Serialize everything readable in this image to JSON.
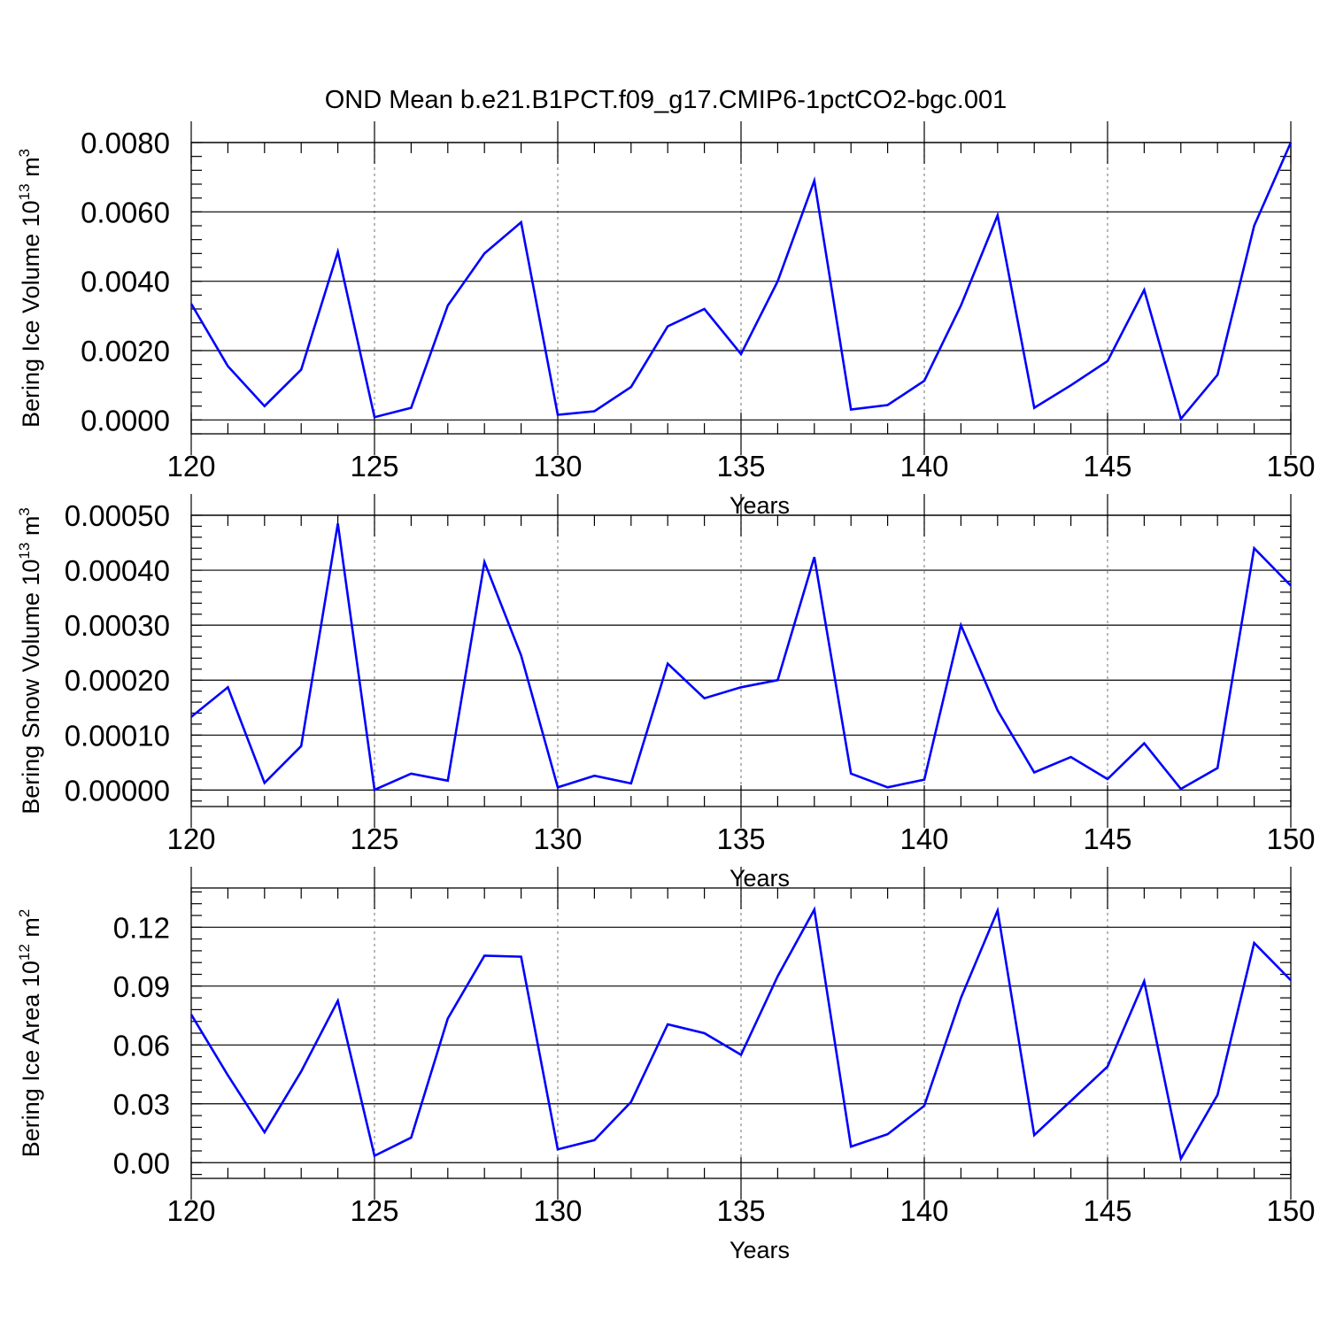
{
  "title": "OND Mean b.e21.B1PCT.f09_g17.CMIP6-1pctCO2-bgc.001",
  "colors": {
    "series": "#0000ff",
    "grid": "#888888",
    "axis": "#000000"
  },
  "chart_data": [
    {
      "type": "line",
      "xlabel": "Years",
      "ylabel": {
        "prefix": "Bering Ice Volume 10",
        "sup": "13",
        "mid": " m",
        "sup2": "3"
      },
      "xlim": [
        120,
        150
      ],
      "ylim": [
        -0.0004,
        0.008
      ],
      "xticks": [
        120,
        125,
        130,
        135,
        140,
        145,
        150
      ],
      "xtick_labels": [
        "120",
        "125",
        "130",
        "135",
        "140",
        "145",
        "150"
      ],
      "yticks": [
        0,
        0.002,
        0.004,
        0.006,
        0.008
      ],
      "ytick_labels": [
        "0.0000",
        "0.0020",
        "0.0040",
        "0.0060",
        "0.0080"
      ],
      "grid": "vertical dashed at major x ticks",
      "series": [
        {
          "x": [
            120,
            121,
            122,
            123,
            124,
            125,
            126,
            127,
            128,
            129,
            130,
            131,
            132,
            133,
            134,
            135,
            136,
            137,
            138,
            139,
            140,
            141,
            142,
            143,
            144,
            145,
            146,
            147,
            148,
            149,
            150
          ],
          "values": [
            0.00335,
            0.00155,
            0.0004,
            0.00145,
            0.00485,
            8e-05,
            0.00035,
            0.0033,
            0.0048,
            0.0057,
            0.00015,
            0.00025,
            0.00095,
            0.0027,
            0.0032,
            0.0019,
            0.004,
            0.0069,
            0.0003,
            0.00043,
            0.00113,
            0.0033,
            0.0059,
            0.00035,
            0.001,
            0.0017,
            0.00375,
            3e-05,
            0.0013,
            0.0056,
            0.008
          ]
        }
      ]
    },
    {
      "type": "line",
      "xlabel": "Years",
      "ylabel": {
        "prefix": "Bering Snow Volume 10",
        "sup": "13",
        "mid": " m",
        "sup2": "3"
      },
      "xlim": [
        120,
        150
      ],
      "ylim": [
        -3e-05,
        0.0005
      ],
      "xticks": [
        120,
        125,
        130,
        135,
        140,
        145,
        150
      ],
      "xtick_labels": [
        "120",
        "125",
        "130",
        "135",
        "140",
        "145",
        "150"
      ],
      "yticks": [
        0,
        0.0001,
        0.0002,
        0.0003,
        0.0004,
        0.0005
      ],
      "ytick_labels": [
        "0.00000",
        "0.00010",
        "0.00020",
        "0.00030",
        "0.00040",
        "0.00050"
      ],
      "grid": "vertical dashed at major x ticks",
      "series": [
        {
          "x": [
            120,
            121,
            122,
            123,
            124,
            125,
            126,
            127,
            128,
            129,
            130,
            131,
            132,
            133,
            134,
            135,
            136,
            137,
            138,
            139,
            140,
            141,
            142,
            143,
            144,
            145,
            146,
            147,
            148,
            149,
            150
          ],
          "values": [
            0.000133,
            0.000187,
            1.3e-05,
            8e-05,
            0.000485,
            5e-07,
            3e-05,
            1.7e-05,
            0.000415,
            0.000245,
            5e-06,
            2.6e-05,
            1.2e-05,
            0.00023,
            0.000167,
            0.000187,
            0.0002,
            0.000424,
            3e-05,
            5e-06,
            1.9e-05,
            0.0003,
            0.000145,
            3.2e-05,
            6e-05,
            2e-05,
            8.5e-05,
            2e-06,
            4e-05,
            0.00044,
            0.000372
          ]
        }
      ]
    },
    {
      "type": "line",
      "xlabel": "Years",
      "ylabel": {
        "prefix": "Bering Ice Area 10",
        "sup": "12",
        "mid": " m",
        "sup2": "2"
      },
      "xlim": [
        120,
        150
      ],
      "ylim": [
        -0.008,
        0.14
      ],
      "xticks": [
        120,
        125,
        130,
        135,
        140,
        145,
        150
      ],
      "xtick_labels": [
        "120",
        "125",
        "130",
        "135",
        "140",
        "145",
        "150"
      ],
      "yticks": [
        0,
        0.03,
        0.06,
        0.09,
        0.12
      ],
      "ytick_labels": [
        "0.00",
        "0.03",
        "0.06",
        "0.09",
        "0.12"
      ],
      "grid": "vertical dashed at major x ticks",
      "series": [
        {
          "x": [
            120,
            121,
            122,
            123,
            124,
            125,
            126,
            127,
            128,
            129,
            130,
            131,
            132,
            133,
            134,
            135,
            136,
            137,
            138,
            139,
            140,
            141,
            142,
            143,
            144,
            145,
            146,
            147,
            148,
            149,
            150
          ],
          "values": [
            0.0755,
            0.0445,
            0.0155,
            0.0465,
            0.0825,
            0.0035,
            0.0128,
            0.0735,
            0.1055,
            0.105,
            0.0068,
            0.0115,
            0.031,
            0.0705,
            0.066,
            0.055,
            0.095,
            0.129,
            0.0082,
            0.0145,
            0.029,
            0.084,
            0.1285,
            0.014,
            0.0315,
            0.049,
            0.0925,
            0.002,
            0.0345,
            0.112,
            0.093
          ]
        }
      ]
    }
  ]
}
